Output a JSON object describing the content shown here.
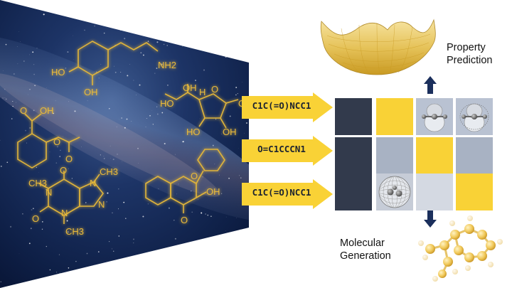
{
  "smiles": [
    "C1C(=O)NCC1",
    "O=C1CCCN1",
    "C1C(=O)NCC1"
  ],
  "labels": {
    "property_line1": "Property",
    "property_line2": "Prediction",
    "generation_line1": "Molecular",
    "generation_line2": "Generation"
  },
  "space_molecules": [
    {
      "name": "dopamine",
      "text": [
        "HO",
        "OH",
        "NH2"
      ]
    },
    {
      "name": "ascorbic-acid",
      "text": [
        "HO",
        "OH",
        "HO",
        "OH",
        "H",
        "O",
        "O"
      ]
    },
    {
      "name": "aspirin",
      "text": [
        "O",
        "OH",
        "O",
        "O"
      ]
    },
    {
      "name": "caffeine",
      "text": [
        "O",
        "O",
        "N",
        "N",
        "N",
        "N",
        "CH3",
        "CH3",
        "CH3"
      ]
    },
    {
      "name": "flavonol",
      "text": [
        "O",
        "OH",
        "O"
      ]
    }
  ],
  "grid": {
    "rows": [
      [
        "navy",
        "yellow",
        "orbital-p",
        "orbital-d"
      ],
      [
        "navy",
        "gray",
        "yellow",
        "gray"
      ],
      [
        "navy",
        "orbital-s",
        "light",
        "yellow"
      ]
    ]
  },
  "colors": {
    "navy": "#323a4c",
    "yellow": "#f9d236",
    "gray": "#a8b2c3",
    "light": "#d4d9e2",
    "gold": "#d8ac2d",
    "arrow_blue": "#1b2f5c",
    "space_dark": "#0a1a3c"
  }
}
